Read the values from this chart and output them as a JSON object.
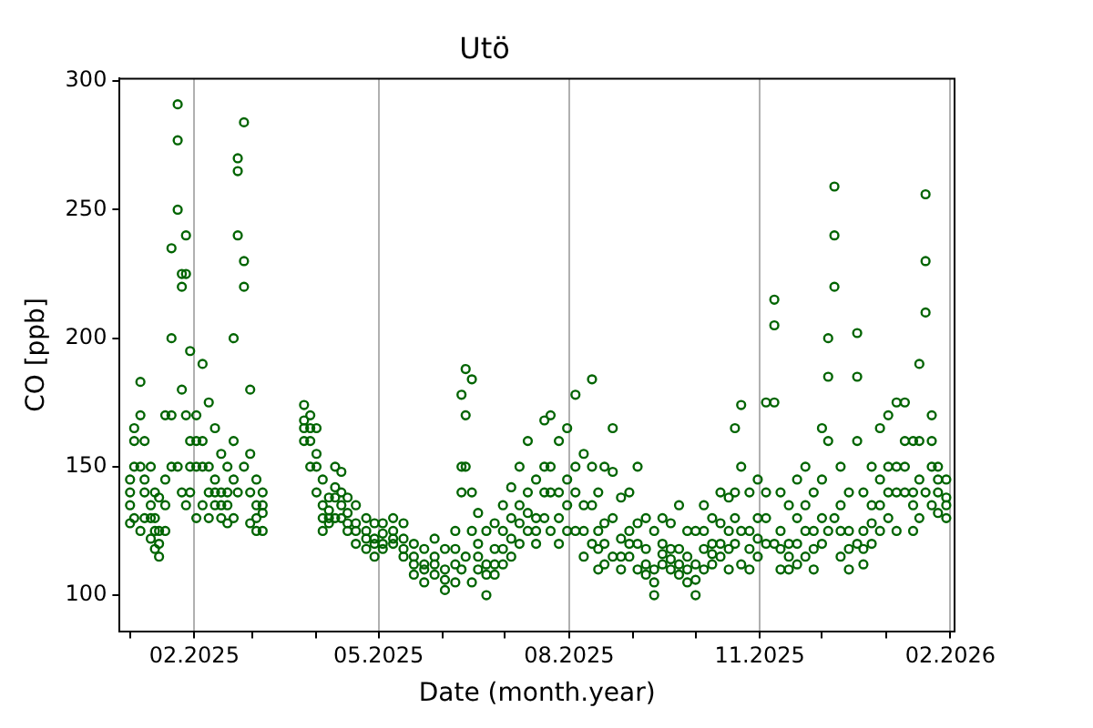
{
  "chart_data": {
    "type": "scatter",
    "title": "Utö",
    "xlabel": "Date (month.year)",
    "ylabel": "CO [ppb]",
    "marker": "circle",
    "grid": "x",
    "legend": false,
    "xlim": [
      "2024-12-27",
      "2026-02-03"
    ],
    "ylim": [
      86,
      301
    ],
    "xticks": [
      {
        "value": "2025-01",
        "label": null
      },
      {
        "value": "2025-02",
        "label": "02.2025"
      },
      {
        "value": "2025-03",
        "label": null
      },
      {
        "value": "2025-04",
        "label": null
      },
      {
        "value": "2025-05",
        "label": "05.2025"
      },
      {
        "value": "2025-06",
        "label": null
      },
      {
        "value": "2025-07",
        "label": null
      },
      {
        "value": "2025-08",
        "label": "08.2025"
      },
      {
        "value": "2025-09",
        "label": null
      },
      {
        "value": "2025-10",
        "label": null
      },
      {
        "value": "2025-11",
        "label": "11.2025"
      },
      {
        "value": "2025-12",
        "label": null
      },
      {
        "value": "2026-01",
        "label": null
      },
      {
        "value": "2026-02",
        "label": "02.2026"
      }
    ],
    "yticks": [
      100,
      150,
      200,
      250,
      300
    ],
    "series": [
      {
        "color": "#006400",
        "x": [
          "2025-01-01",
          "2025-01-01",
          "2025-01-01",
          "2025-01-01",
          "2025-01-03",
          "2025-01-03",
          "2025-01-03",
          "2025-01-03",
          "2025-01-06",
          "2025-01-06",
          "2025-01-06",
          "2025-01-06",
          "2025-01-08",
          "2025-01-08",
          "2025-01-08",
          "2025-01-08",
          "2025-01-11",
          "2025-01-11",
          "2025-01-11",
          "2025-01-11",
          "2025-01-13",
          "2025-01-13",
          "2025-01-13",
          "2025-01-13",
          "2025-01-15",
          "2025-01-15",
          "2025-01-15",
          "2025-01-15",
          "2025-01-18",
          "2025-01-18",
          "2025-01-18",
          "2025-01-18",
          "2025-01-21",
          "2025-01-21",
          "2025-01-21",
          "2025-01-21",
          "2025-01-24",
          "2025-01-24",
          "2025-01-24",
          "2025-01-24",
          "2025-01-26",
          "2025-01-26",
          "2025-01-26",
          "2025-01-26",
          "2025-01-28",
          "2025-01-28",
          "2025-01-28",
          "2025-01-28",
          "2025-01-30",
          "2025-01-30",
          "2025-01-30",
          "2025-01-30",
          "2025-02-02",
          "2025-02-02",
          "2025-02-02",
          "2025-02-02",
          "2025-02-05",
          "2025-02-05",
          "2025-02-05",
          "2025-02-05",
          "2025-02-08",
          "2025-02-08",
          "2025-02-08",
          "2025-02-08",
          "2025-02-11",
          "2025-02-11",
          "2025-02-11",
          "2025-02-11",
          "2025-02-14",
          "2025-02-14",
          "2025-02-14",
          "2025-02-14",
          "2025-02-17",
          "2025-02-17",
          "2025-02-17",
          "2025-02-17",
          "2025-02-20",
          "2025-02-20",
          "2025-02-20",
          "2025-02-20",
          "2025-02-22",
          "2025-02-22",
          "2025-02-22",
          "2025-02-22",
          "2025-02-25",
          "2025-02-25",
          "2025-02-25",
          "2025-02-25",
          "2025-02-28",
          "2025-02-28",
          "2025-02-28",
          "2025-02-28",
          "2025-03-03",
          "2025-03-03",
          "2025-03-03",
          "2025-03-03",
          "2025-03-06",
          "2025-03-06",
          "2025-03-06",
          "2025-03-06",
          "2025-03-26",
          "2025-03-26",
          "2025-03-26",
          "2025-03-26",
          "2025-03-29",
          "2025-03-29",
          "2025-03-29",
          "2025-03-29",
          "2025-04-01",
          "2025-04-01",
          "2025-04-01",
          "2025-04-01",
          "2025-04-04",
          "2025-04-04",
          "2025-04-04",
          "2025-04-04",
          "2025-04-07",
          "2025-04-07",
          "2025-04-07",
          "2025-04-07",
          "2025-04-10",
          "2025-04-10",
          "2025-04-10",
          "2025-04-10",
          "2025-04-13",
          "2025-04-13",
          "2025-04-13",
          "2025-04-13",
          "2025-04-16",
          "2025-04-16",
          "2025-04-16",
          "2025-04-16",
          "2025-04-20",
          "2025-04-20",
          "2025-04-20",
          "2025-04-20",
          "2025-04-25",
          "2025-04-25",
          "2025-04-25",
          "2025-04-25",
          "2025-04-29",
          "2025-04-29",
          "2025-04-29",
          "2025-04-29",
          "2025-05-03",
          "2025-05-03",
          "2025-05-03",
          "2025-05-03",
          "2025-05-08",
          "2025-05-08",
          "2025-05-08",
          "2025-05-08",
          "2025-05-13",
          "2025-05-13",
          "2025-05-13",
          "2025-05-13",
          "2025-05-18",
          "2025-05-18",
          "2025-05-18",
          "2025-05-18",
          "2025-05-23",
          "2025-05-23",
          "2025-05-23",
          "2025-05-23",
          "2025-05-28",
          "2025-05-28",
          "2025-05-28",
          "2025-05-28",
          "2025-06-02",
          "2025-06-02",
          "2025-06-02",
          "2025-06-02",
          "2025-06-07",
          "2025-06-07",
          "2025-06-07",
          "2025-06-07",
          "2025-06-10",
          "2025-06-10",
          "2025-06-10",
          "2025-06-10",
          "2025-06-12",
          "2025-06-12",
          "2025-06-12",
          "2025-06-12",
          "2025-06-15",
          "2025-06-15",
          "2025-06-15",
          "2025-06-15",
          "2025-06-18",
          "2025-06-18",
          "2025-06-18",
          "2025-06-18",
          "2025-06-22",
          "2025-06-22",
          "2025-06-22",
          "2025-06-22",
          "2025-06-26",
          "2025-06-26",
          "2025-06-26",
          "2025-06-26",
          "2025-06-30",
          "2025-06-30",
          "2025-06-30",
          "2025-06-30",
          "2025-07-04",
          "2025-07-04",
          "2025-07-04",
          "2025-07-04",
          "2025-07-08",
          "2025-07-08",
          "2025-07-08",
          "2025-07-08",
          "2025-07-12",
          "2025-07-12",
          "2025-07-12",
          "2025-07-12",
          "2025-07-16",
          "2025-07-16",
          "2025-07-16",
          "2025-07-16",
          "2025-07-20",
          "2025-07-20",
          "2025-07-20",
          "2025-07-20",
          "2025-07-23",
          "2025-07-23",
          "2025-07-23",
          "2025-07-23",
          "2025-07-27",
          "2025-07-27",
          "2025-07-27",
          "2025-07-27",
          "2025-07-31",
          "2025-07-31",
          "2025-07-31",
          "2025-07-31",
          "2025-08-04",
          "2025-08-04",
          "2025-08-04",
          "2025-08-04",
          "2025-08-08",
          "2025-08-08",
          "2025-08-08",
          "2025-08-08",
          "2025-08-12",
          "2025-08-12",
          "2025-08-12",
          "2025-08-12",
          "2025-08-15",
          "2025-08-15",
          "2025-08-15",
          "2025-08-15",
          "2025-08-18",
          "2025-08-18",
          "2025-08-18",
          "2025-08-18",
          "2025-08-22",
          "2025-08-22",
          "2025-08-22",
          "2025-08-22",
          "2025-08-26",
          "2025-08-26",
          "2025-08-26",
          "2025-08-26",
          "2025-08-30",
          "2025-08-30",
          "2025-08-30",
          "2025-08-30",
          "2025-09-03",
          "2025-09-03",
          "2025-09-03",
          "2025-09-03",
          "2025-09-07",
          "2025-09-07",
          "2025-09-07",
          "2025-09-07",
          "2025-09-11",
          "2025-09-11",
          "2025-09-11",
          "2025-09-11",
          "2025-09-15",
          "2025-09-15",
          "2025-09-15",
          "2025-09-15",
          "2025-09-19",
          "2025-09-19",
          "2025-09-19",
          "2025-09-19",
          "2025-09-23",
          "2025-09-23",
          "2025-09-23",
          "2025-09-23",
          "2025-09-27",
          "2025-09-27",
          "2025-09-27",
          "2025-09-27",
          "2025-10-01",
          "2025-10-01",
          "2025-10-01",
          "2025-10-01",
          "2025-10-05",
          "2025-10-05",
          "2025-10-05",
          "2025-10-05",
          "2025-10-09",
          "2025-10-09",
          "2025-10-09",
          "2025-10-09",
          "2025-10-13",
          "2025-10-13",
          "2025-10-13",
          "2025-10-13",
          "2025-10-17",
          "2025-10-17",
          "2025-10-17",
          "2025-10-17",
          "2025-10-20",
          "2025-10-20",
          "2025-10-20",
          "2025-10-20",
          "2025-10-23",
          "2025-10-23",
          "2025-10-23",
          "2025-10-23",
          "2025-10-27",
          "2025-10-27",
          "2025-10-27",
          "2025-10-27",
          "2025-10-31",
          "2025-10-31",
          "2025-10-31",
          "2025-10-31",
          "2025-11-04",
          "2025-11-04",
          "2025-11-04",
          "2025-11-04",
          "2025-11-08",
          "2025-11-08",
          "2025-11-08",
          "2025-11-08",
          "2025-11-11",
          "2025-11-11",
          "2025-11-11",
          "2025-11-11",
          "2025-11-15",
          "2025-11-15",
          "2025-11-15",
          "2025-11-15",
          "2025-11-19",
          "2025-11-19",
          "2025-11-19",
          "2025-11-19",
          "2025-11-23",
          "2025-11-23",
          "2025-11-23",
          "2025-11-23",
          "2025-11-27",
          "2025-11-27",
          "2025-11-27",
          "2025-11-27",
          "2025-12-01",
          "2025-12-01",
          "2025-12-01",
          "2025-12-01",
          "2025-12-04",
          "2025-12-04",
          "2025-12-04",
          "2025-12-04",
          "2025-12-07",
          "2025-12-07",
          "2025-12-07",
          "2025-12-07",
          "2025-12-10",
          "2025-12-10",
          "2025-12-10",
          "2025-12-10",
          "2025-12-14",
          "2025-12-14",
          "2025-12-14",
          "2025-12-14",
          "2025-12-18",
          "2025-12-18",
          "2025-12-18",
          "2025-12-18",
          "2025-12-21",
          "2025-12-21",
          "2025-12-21",
          "2025-12-21",
          "2025-12-25",
          "2025-12-25",
          "2025-12-25",
          "2025-12-25",
          "2025-12-29",
          "2025-12-29",
          "2025-12-29",
          "2025-12-29",
          "2026-01-02",
          "2026-01-02",
          "2026-01-02",
          "2026-01-02",
          "2026-01-06",
          "2026-01-06",
          "2026-01-06",
          "2026-01-06",
          "2026-01-10",
          "2026-01-10",
          "2026-01-10",
          "2026-01-10",
          "2026-01-14",
          "2026-01-14",
          "2026-01-14",
          "2026-01-14",
          "2026-01-17",
          "2026-01-17",
          "2026-01-17",
          "2026-01-17",
          "2026-01-20",
          "2026-01-20",
          "2026-01-20",
          "2026-01-20",
          "2026-01-23",
          "2026-01-23",
          "2026-01-23",
          "2026-01-23",
          "2026-01-26",
          "2026-01-26",
          "2026-01-26",
          "2026-01-26",
          "2026-01-30",
          "2026-01-30",
          "2026-01-30",
          "2026-01-30"
        ],
        "values": [
          128,
          135,
          140,
          145,
          130,
          150,
          160,
          165,
          125,
          150,
          170,
          183,
          130,
          140,
          145,
          160,
          122,
          130,
          135,
          150,
          118,
          125,
          130,
          140,
          115,
          120,
          125,
          138,
          125,
          135,
          145,
          170,
          150,
          170,
          200,
          235,
          150,
          250,
          277,
          291,
          140,
          180,
          220,
          225,
          135,
          170,
          225,
          240,
          140,
          150,
          160,
          195,
          130,
          150,
          160,
          170,
          135,
          150,
          160,
          190,
          130,
          140,
          150,
          175,
          135,
          140,
          145,
          165,
          130,
          135,
          140,
          155,
          128,
          135,
          140,
          150,
          130,
          145,
          160,
          200,
          140,
          240,
          265,
          270,
          150,
          220,
          230,
          284,
          128,
          140,
          155,
          180,
          125,
          130,
          135,
          145,
          125,
          132,
          135,
          140,
          160,
          165,
          168,
          174,
          150,
          160,
          165,
          170,
          140,
          150,
          155,
          165,
          125,
          130,
          135,
          145,
          128,
          130,
          133,
          138,
          130,
          138,
          142,
          150,
          130,
          135,
          140,
          148,
          125,
          128,
          132,
          138,
          120,
          125,
          128,
          135,
          118,
          122,
          125,
          130,
          115,
          120,
          122,
          128,
          118,
          120,
          124,
          128,
          120,
          122,
          125,
          130,
          115,
          118,
          122,
          128,
          108,
          112,
          115,
          120,
          105,
          110,
          112,
          118,
          108,
          112,
          115,
          122,
          102,
          106,
          110,
          118,
          105,
          112,
          118,
          125,
          110,
          140,
          150,
          178,
          115,
          150,
          170,
          188,
          105,
          125,
          140,
          184,
          110,
          115,
          120,
          132,
          100,
          108,
          112,
          125,
          108,
          112,
          118,
          128,
          112,
          118,
          125,
          135,
          115,
          122,
          130,
          142,
          120,
          128,
          135,
          150,
          125,
          132,
          140,
          160,
          120,
          125,
          130,
          145,
          130,
          140,
          150,
          168,
          125,
          140,
          150,
          170,
          120,
          130,
          140,
          160,
          125,
          135,
          145,
          165,
          125,
          140,
          150,
          178,
          115,
          125,
          135,
          155,
          120,
          135,
          150,
          184,
          110,
          118,
          125,
          140,
          112,
          120,
          128,
          150,
          115,
          130,
          148,
          165,
          110,
          115,
          122,
          138,
          115,
          120,
          125,
          140,
          110,
          120,
          128,
          150,
          108,
          112,
          118,
          130,
          100,
          105,
          110,
          125,
          112,
          116,
          120,
          130,
          110,
          114,
          118,
          128,
          108,
          112,
          118,
          135,
          105,
          110,
          115,
          125,
          100,
          106,
          112,
          125,
          110,
          118,
          125,
          135,
          112,
          116,
          120,
          130,
          115,
          120,
          128,
          140,
          110,
          118,
          125,
          138,
          120,
          130,
          140,
          165,
          112,
          125,
          150,
          174,
          110,
          118,
          125,
          140,
          115,
          122,
          130,
          145,
          120,
          130,
          140,
          175,
          120,
          175,
          205,
          215,
          110,
          118,
          125,
          140,
          110,
          115,
          120,
          135,
          112,
          120,
          130,
          145,
          115,
          125,
          135,
          150,
          110,
          118,
          125,
          140,
          120,
          130,
          145,
          165,
          125,
          160,
          185,
          200,
          130,
          220,
          240,
          259,
          115,
          125,
          135,
          150,
          110,
          118,
          125,
          140,
          120,
          160,
          185,
          202,
          112,
          118,
          125,
          140,
          120,
          128,
          135,
          150,
          125,
          135,
          145,
          165,
          130,
          140,
          150,
          170,
          125,
          140,
          150,
          175,
          140,
          150,
          160,
          175,
          125,
          135,
          140,
          160,
          130,
          145,
          160,
          190,
          140,
          210,
          230,
          256,
          135,
          150,
          160,
          170,
          132,
          140,
          145,
          150,
          130,
          135,
          138,
          145
        ]
      }
    ]
  }
}
